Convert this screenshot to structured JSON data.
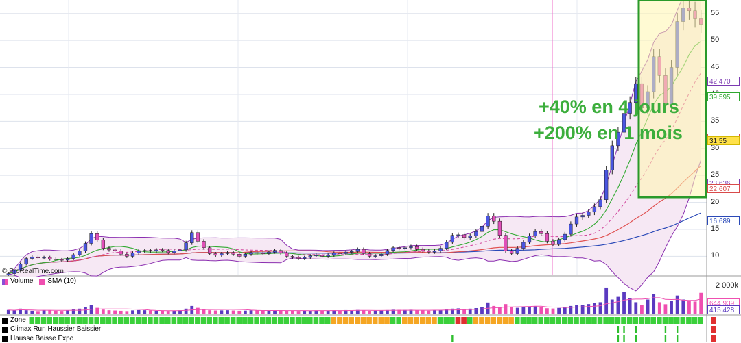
{
  "chart_data": {
    "type": "candlestick",
    "y_axis": {
      "ticks": [
        10,
        15,
        20,
        25,
        30,
        35,
        40,
        45,
        50,
        55
      ],
      "ylim": [
        6.5,
        57.5
      ]
    },
    "price_tags": [
      {
        "label": "42,470",
        "value": 42.47,
        "color": "#7c3ab2"
      },
      {
        "label": "39,595",
        "value": 39.595,
        "color": "#2ea82e"
      },
      {
        "label": "32,052",
        "value": 32.052,
        "color": "#d84a4a"
      },
      {
        "label": "31,55",
        "value": 31.55,
        "color": "#8a7a00"
      },
      {
        "label": "23,636",
        "value": 23.636,
        "color": "#7c3ab2"
      },
      {
        "label": "22,607",
        "value": 22.607,
        "color": "#d84a4a"
      },
      {
        "label": "16,689",
        "value": 16.689,
        "color": "#2b4ab8"
      }
    ],
    "close_series": [
      6.8,
      7.4,
      8.6,
      9.6,
      9.9,
      9.7,
      9.8,
      9.5,
      9.4,
      9.3,
      9.6,
      10.3,
      11.0,
      12.4,
      14.2,
      13.0,
      11.5,
      11.2,
      11.0,
      10.4,
      10.0,
      10.6,
      11.0,
      11.1,
      11.0,
      11.2,
      11.1,
      10.7,
      11.0,
      11.2,
      12.5,
      14.4,
      12.8,
      11.6,
      10.5,
      10.2,
      10.5,
      10.7,
      10.4,
      10.0,
      10.4,
      10.7,
      10.6,
      10.5,
      10.8,
      11.1,
      10.6,
      10.0,
      9.8,
      9.6,
      9.8,
      10.1,
      10.2,
      10.0,
      10.2,
      10.6,
      10.5,
      10.8,
      10.9,
      11.3,
      10.5,
      10.0,
      10.1,
      10.4,
      11.1,
      11.6,
      11.5,
      11.6,
      11.8,
      11.3,
      11.0,
      10.8,
      11.0,
      11.5,
      12.6,
      13.9,
      14.0,
      13.5,
      13.8,
      14.6,
      15.6,
      17.5,
      16.5,
      13.9,
      11.0,
      10.5,
      11.5,
      12.6,
      13.8,
      14.6,
      14.2,
      12.8,
      12.2,
      13.1,
      14.1,
      16.0,
      17.3,
      17.6,
      18.2,
      19.2,
      20.5,
      26.0,
      30.5,
      33.0,
      36.5,
      38.5,
      42.0,
      37.5,
      40.5,
      47.0,
      43.5,
      38.0,
      45.0,
      53.5,
      56.0,
      55.5,
      54.0,
      53.0
    ],
    "volume_series": [
      320,
      280,
      420,
      300,
      260,
      240,
      310,
      290,
      260,
      250,
      300,
      380,
      420,
      520,
      700,
      480,
      350,
      300,
      280,
      260,
      240,
      290,
      310,
      300,
      280,
      260,
      270,
      250,
      280,
      300,
      420,
      620,
      480,
      360,
      300,
      280,
      290,
      300,
      280,
      260,
      270,
      290,
      280,
      270,
      280,
      300,
      290,
      270,
      260,
      250,
      260,
      280,
      290,
      270,
      280,
      300,
      290,
      310,
      300,
      320,
      280,
      260,
      270,
      280,
      310,
      340,
      330,
      320,
      340,
      300,
      280,
      270,
      290,
      310,
      380,
      420,
      440,
      400,
      420,
      460,
      520,
      880,
      620,
      500,
      760,
      540,
      480,
      520,
      560,
      600,
      520,
      450,
      430,
      470,
      520,
      620,
      680,
      700,
      760,
      820,
      900,
      2000,
      1100,
      1300,
      1650,
      1200,
      900,
      700,
      1100,
      1500,
      900,
      750,
      1000,
      1400,
      1100,
      1000,
      950,
      1600
    ],
    "volume_axis": {
      "ticks": [
        "2 000k"
      ],
      "tags": [
        "644 939",
        "415 428"
      ]
    },
    "legend": [
      {
        "label": "Volume",
        "color": "#8a4fd6"
      },
      {
        "label": "SMA (10)",
        "color": "#ef4fb0"
      }
    ],
    "indicators": [
      "Zone",
      "Climax Run Haussier Baissier",
      "Hausse Baisse Expo"
    ],
    "annotations": [
      "+40% en 4 jours",
      "+200% en 1 mois"
    ],
    "source": "© ProRealTime.com"
  }
}
